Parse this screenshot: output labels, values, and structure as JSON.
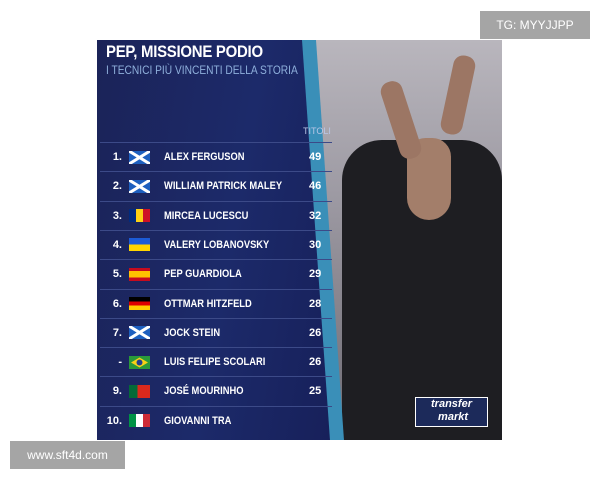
{
  "header": {
    "title": "PEP, MISSIONE PODIO",
    "subtitle": "I TECNICI PIÙ VINCENTI DELLA STORIA",
    "column": "TITOLI"
  },
  "rows": [
    {
      "rank": "1.",
      "flag": "scotland",
      "name": "ALEX FERGUSON",
      "titles": "49"
    },
    {
      "rank": "2.",
      "flag": "scotland",
      "name": "WILLIAM PATRICK MALEY",
      "titles": "46"
    },
    {
      "rank": "3.",
      "flag": "romania",
      "name": "MIRCEA LUCESCU",
      "titles": "32"
    },
    {
      "rank": "4.",
      "flag": "ukraine",
      "name": "VALERY LOBANOVSKY",
      "titles": "30"
    },
    {
      "rank": "5.",
      "flag": "spain",
      "name": "PEP GUARDIOLA",
      "titles": "29"
    },
    {
      "rank": "6.",
      "flag": "germany",
      "name": "OTTMAR HITZFELD",
      "titles": "28"
    },
    {
      "rank": "7.",
      "flag": "scotland",
      "name": "JOCK STEIN",
      "titles": "26"
    },
    {
      "rank": "-",
      "flag": "brazil",
      "name": "LUIS FELIPE SCOLARI",
      "titles": "26"
    },
    {
      "rank": "9.",
      "flag": "portugal",
      "name": "JOSÉ MOURINHO",
      "titles": "25"
    },
    {
      "rank": "10.",
      "flag": "italy",
      "name": "GIOVANNI TRA",
      "titles": ""
    }
  ],
  "logo": {
    "line1": "transfer",
    "line2": "markt"
  },
  "watermarks": {
    "top": "TG: MYYJJPP",
    "bottom": "www.sft4d.com"
  }
}
